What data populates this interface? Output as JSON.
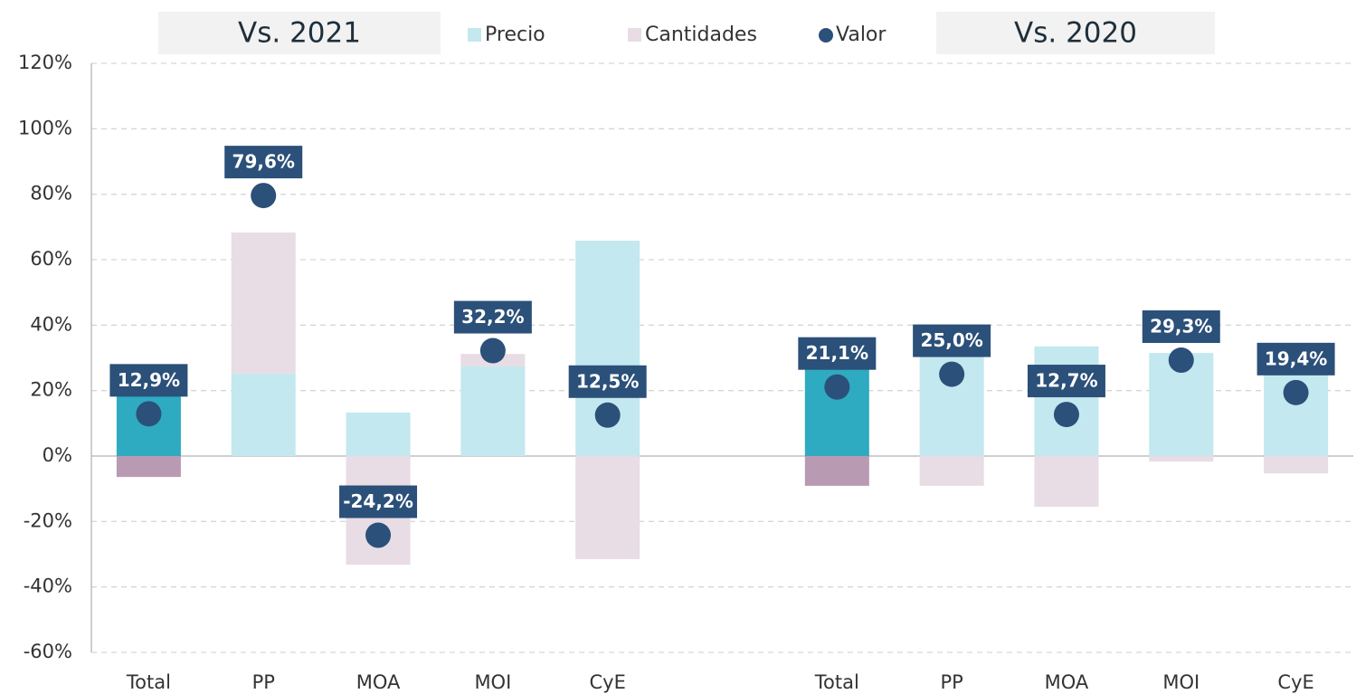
{
  "chart_data": {
    "type": "combo",
    "annotations": [
      "Vs. 2021",
      "Vs. 2020"
    ],
    "categories": [
      "Total",
      "PP",
      "MOA",
      "MOI",
      "CyE",
      null,
      "Total",
      "PP",
      "MOA",
      "MOI",
      "CyE"
    ],
    "series": [
      {
        "name": "Precio",
        "type": "stacked-bar",
        "color": "#c3e8ef",
        "colors": [
          "#2eaac1",
          "#c3e8ef",
          "#c3e8ef",
          "#c3e8ef",
          "#c3e8ef",
          null,
          "#2eaac1",
          "#c3e8ef",
          "#c3e8ef",
          "#c3e8ef",
          "#c3e8ef"
        ],
        "values": [
          19.1,
          25.2,
          13.3,
          27.4,
          65.8,
          null,
          27.0,
          31.0,
          33.5,
          31.5,
          26.0
        ]
      },
      {
        "name": "Cantidades",
        "type": "stacked-bar",
        "color": "#e8dce5",
        "colors": [
          "#b99ab3",
          "#e8dce5",
          "#e8dce5",
          "#e8dce5",
          "#e8dce5",
          null,
          "#b99ab3",
          "#e8dce5",
          "#e8dce5",
          "#e8dce5",
          "#e8dce5"
        ],
        "values": [
          -6.4,
          43.1,
          -33.2,
          3.8,
          -31.5,
          null,
          -9.1,
          -9.1,
          -15.5,
          -1.7,
          -5.3
        ]
      },
      {
        "name": "Valor",
        "type": "dot",
        "color": "#2b5079",
        "values": [
          12.9,
          79.6,
          -24.2,
          32.2,
          12.5,
          null,
          21.1,
          25.0,
          12.7,
          29.3,
          19.4
        ],
        "value_labels": [
          "12,9%",
          "79,6%",
          "-24,2%",
          "32,2%",
          "12,5%",
          null,
          "21,1%",
          "25,0%",
          "12,7%",
          "29,3%",
          "19,4%"
        ]
      }
    ],
    "ylim": [
      -60,
      120
    ],
    "yticks": [
      {
        "value": -60,
        "label": "-60%"
      },
      {
        "value": -40,
        "label": "-40%"
      },
      {
        "value": -20,
        "label": "-20%"
      },
      {
        "value": 0,
        "label": "0%"
      },
      {
        "value": 20,
        "label": "20%"
      },
      {
        "value": 40,
        "label": "40%"
      },
      {
        "value": 60,
        "label": "60%"
      },
      {
        "value": 80,
        "label": "80%"
      },
      {
        "value": 100,
        "label": "100%"
      },
      {
        "value": 120,
        "label": "120%"
      }
    ],
    "grid": true,
    "legend": "top"
  }
}
